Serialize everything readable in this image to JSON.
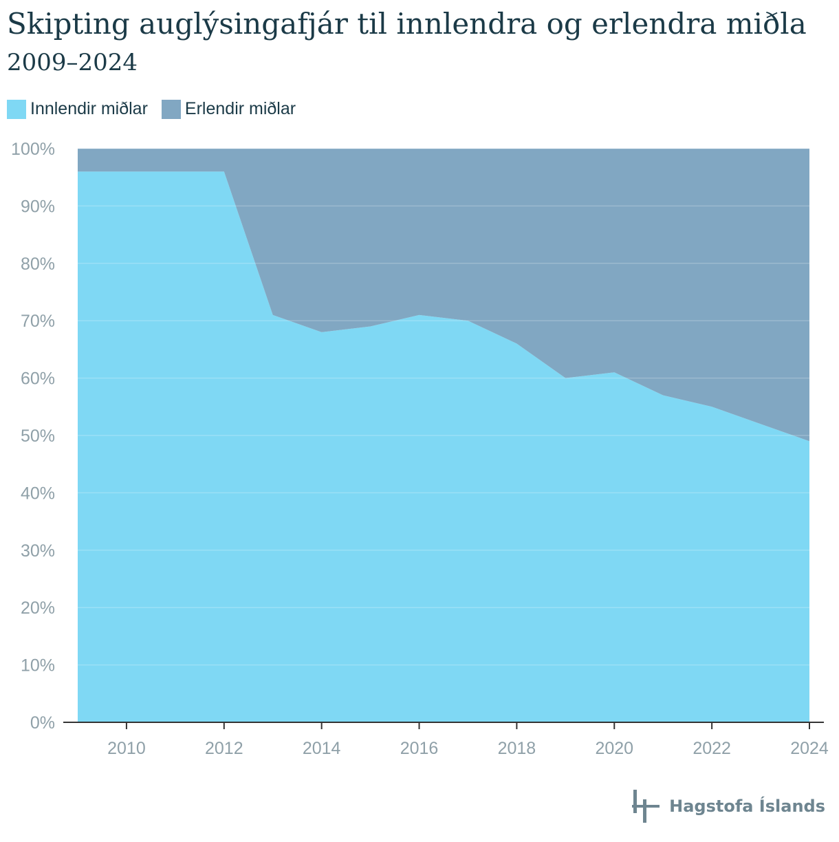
{
  "chart_data": {
    "type": "area",
    "stacked": true,
    "title": "Skipting auglýsingafjár til innlendra og erlendra miðla",
    "subtitle": "2009–2024",
    "x": [
      2009,
      2010,
      2011,
      2012,
      2013,
      2014,
      2015,
      2016,
      2017,
      2018,
      2019,
      2020,
      2021,
      2022,
      2023,
      2024
    ],
    "series": [
      {
        "name": "Innlendir miðlar",
        "color": "#7fd8f4",
        "values": [
          96,
          96,
          96,
          96,
          71,
          68,
          69,
          71,
          70,
          66,
          60,
          61,
          57,
          55,
          52,
          49
        ]
      },
      {
        "name": "Erlendir miðlar",
        "color": "#81a7c2",
        "values": [
          4,
          4,
          4,
          4,
          29,
          32,
          31,
          29,
          30,
          34,
          40,
          39,
          43,
          45,
          48,
          51
        ]
      }
    ],
    "xticks": [
      "2010",
      "2012",
      "2014",
      "2016",
      "2018",
      "2020",
      "2022",
      "2024"
    ],
    "yticks": [
      "0%",
      "10%",
      "20%",
      "30%",
      "40%",
      "50%",
      "60%",
      "70%",
      "80%",
      "90%",
      "100%"
    ],
    "xlim": [
      2009,
      2024
    ],
    "ylim": [
      0,
      100
    ],
    "grid": true,
    "legend": "top-left"
  },
  "source": {
    "logo_text": "Hagstofa Íslands"
  }
}
